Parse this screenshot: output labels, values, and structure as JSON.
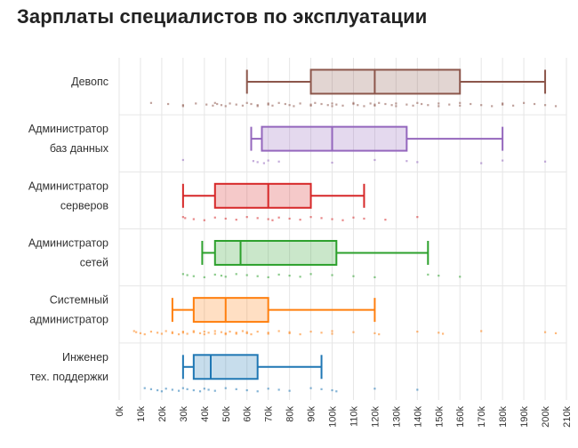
{
  "page": {
    "title": "Зарплаты специалистов по эксплуатации"
  },
  "chart_data": {
    "type": "box",
    "title": "Зарплаты специалистов по эксплуатации",
    "xlabel": "",
    "ylabel": "",
    "xlim": [
      0,
      210
    ],
    "x_ticks": [
      "0k",
      "10k",
      "20k",
      "30k",
      "40k",
      "50k",
      "60k",
      "70k",
      "80k",
      "90k",
      "100k",
      "110k",
      "120k",
      "130k",
      "140k",
      "150k",
      "160k",
      "170k",
      "180k",
      "190k",
      "200k",
      "210k"
    ],
    "grid": true,
    "categories": [
      {
        "lines": [
          "Девопс"
        ],
        "color": "#8c564b",
        "whisker_low": 60,
        "q1": 90,
        "median": 120,
        "q3": 160,
        "whisker_high": 200,
        "points": [
          15,
          23,
          30,
          30,
          36,
          41,
          44,
          45,
          46,
          48,
          50,
          52,
          55,
          58,
          60,
          62,
          65,
          65,
          70,
          70,
          72,
          75,
          78,
          80,
          82,
          85,
          90,
          90,
          92,
          95,
          98,
          100,
          100,
          102,
          105,
          110,
          110,
          112,
          115,
          118,
          120,
          120,
          122,
          125,
          128,
          130,
          130,
          135,
          138,
          140,
          142,
          145,
          150,
          150,
          155,
          160,
          160,
          165,
          170,
          175,
          180,
          180,
          185,
          190,
          195,
          200,
          205
        ]
      },
      {
        "lines": [
          "Администратор",
          "баз данных"
        ],
        "color": "#9467bd",
        "whisker_low": 62,
        "q1": 67,
        "median": 100,
        "q3": 135,
        "whisker_high": 180,
        "points": [
          30,
          63,
          65,
          68,
          70,
          75,
          100,
          120,
          135,
          140,
          170,
          180,
          200
        ]
      },
      {
        "lines": [
          "Администратор",
          "серверов"
        ],
        "color": "#d62728",
        "whisker_low": 30,
        "q1": 45,
        "median": 70,
        "q3": 90,
        "whisker_high": 115,
        "points": [
          30,
          31,
          35,
          40,
          45,
          50,
          55,
          60,
          65,
          70,
          72,
          75,
          80,
          85,
          90,
          95,
          100,
          105,
          110,
          115,
          125,
          140
        ]
      },
      {
        "lines": [
          "Администратор",
          "сетей"
        ],
        "color": "#2ca02c",
        "whisker_low": 39,
        "q1": 45,
        "median": 57,
        "q3": 102,
        "whisker_high": 145,
        "points": [
          30,
          32,
          35,
          40,
          45,
          48,
          50,
          55,
          60,
          65,
          70,
          75,
          80,
          85,
          90,
          100,
          110,
          120,
          145,
          150,
          160
        ]
      },
      {
        "lines": [
          "Системный",
          "администратор"
        ],
        "color": "#ff7f0e",
        "whisker_low": 25,
        "q1": 35,
        "median": 50,
        "q3": 70,
        "whisker_high": 120,
        "points": [
          7,
          8,
          10,
          12,
          15,
          18,
          20,
          22,
          25,
          25,
          28,
          30,
          30,
          32,
          35,
          35,
          38,
          40,
          40,
          42,
          45,
          45,
          48,
          50,
          50,
          52,
          55,
          55,
          58,
          60,
          60,
          62,
          65,
          70,
          70,
          75,
          80,
          80,
          85,
          90,
          95,
          100,
          100,
          110,
          120,
          122,
          140,
          150,
          152,
          170,
          200,
          205
        ]
      },
      {
        "lines": [
          "Инженер",
          "тех. поддержки"
        ],
        "color": "#1f77b4",
        "whisker_low": 30,
        "q1": 35,
        "median": 43,
        "q3": 65,
        "whisker_high": 95,
        "points": [
          12,
          15,
          18,
          20,
          22,
          25,
          28,
          30,
          32,
          35,
          38,
          40,
          42,
          45,
          50,
          55,
          60,
          65,
          70,
          75,
          80,
          90,
          95,
          100,
          102,
          120,
          140
        ]
      }
    ]
  }
}
